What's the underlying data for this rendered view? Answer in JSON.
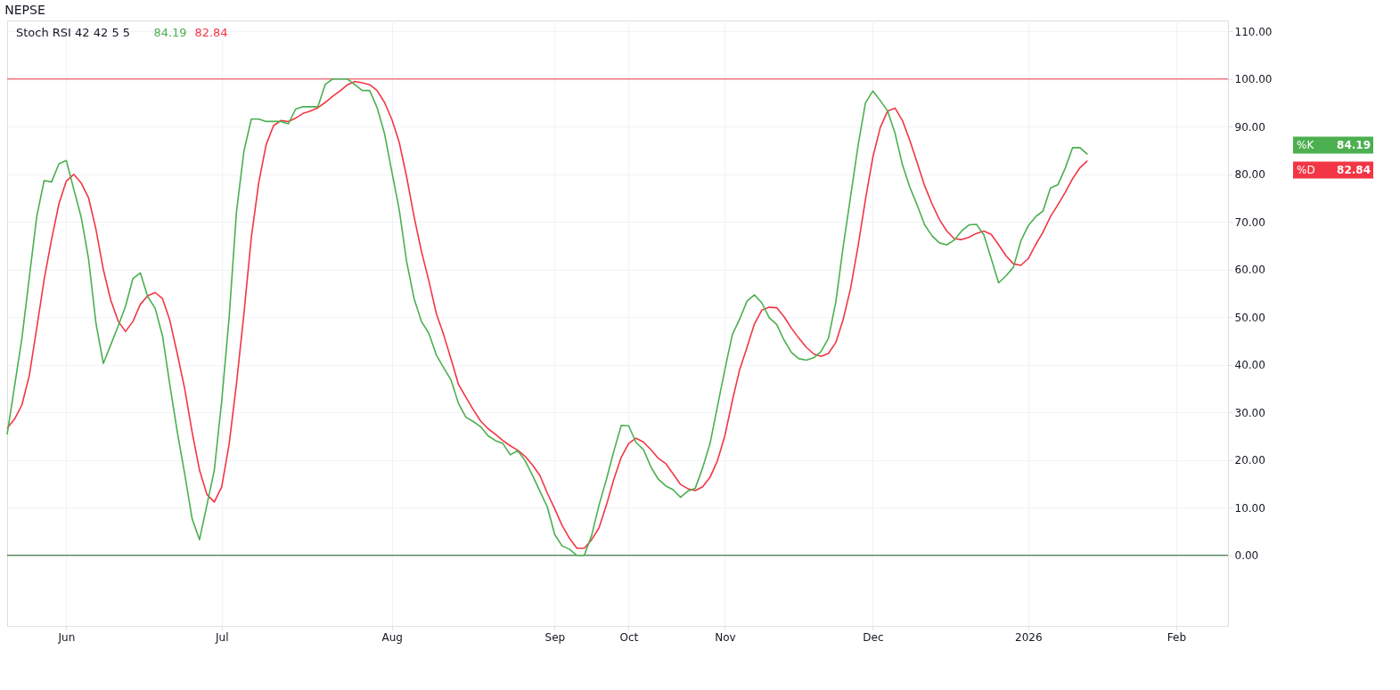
{
  "chart_data": {
    "type": "line",
    "title": "NEPSE",
    "subtitle": "Stoch RSI 42 42 5 5",
    "categories": [
      null,
      null,
      null,
      null,
      null,
      null,
      null,
      null,
      "Jun",
      null,
      null,
      null,
      null,
      null,
      null,
      null,
      null,
      null,
      null,
      null,
      null,
      null,
      null,
      null,
      null,
      null,
      null,
      null,
      null,
      "Jul",
      null,
      null,
      null,
      null,
      null,
      null,
      null,
      null,
      null,
      null,
      null,
      null,
      null,
      null,
      null,
      null,
      null,
      null,
      null,
      null,
      null,
      null,
      "Aug",
      null,
      null,
      null,
      null,
      null,
      null,
      null,
      null,
      null,
      null,
      null,
      null,
      null,
      null,
      null,
      null,
      null,
      null,
      null,
      null,
      null,
      "Sep",
      null,
      null,
      null,
      null,
      null,
      null,
      null,
      null,
      null,
      "Oct",
      null,
      null,
      null,
      null,
      null,
      null,
      null,
      null,
      null,
      null,
      null,
      null,
      "Nov",
      null,
      null,
      null,
      null,
      null,
      null,
      null,
      null,
      null,
      null,
      null,
      null,
      null,
      null,
      null,
      null,
      null,
      null,
      null,
      "Dec",
      null,
      null,
      null,
      null,
      null,
      null,
      null,
      null,
      null,
      null,
      null,
      null,
      null,
      null,
      null,
      null,
      null,
      null,
      null,
      null,
      "2026",
      null,
      null,
      null,
      null,
      null,
      null,
      null,
      null,
      null,
      null,
      null,
      null,
      null,
      null,
      null,
      null,
      null,
      null,
      null,
      "Feb",
      null,
      null,
      null,
      null,
      null,
      null,
      null
    ],
    "ylim": [
      -14.8,
      112.3
    ],
    "yticks": [
      {
        "value": 0,
        "label": "0.00"
      },
      {
        "value": 10,
        "label": "10.00"
      },
      {
        "value": 20,
        "label": "20.00"
      },
      {
        "value": 30,
        "label": "30.00"
      },
      {
        "value": 40,
        "label": "40.00"
      },
      {
        "value": 50,
        "label": "50.00"
      },
      {
        "value": 60,
        "label": "60.00"
      },
      {
        "value": 70,
        "label": "70.00"
      },
      {
        "value": 80,
        "label": "80.00"
      },
      {
        "value": 90,
        "label": "90.00"
      },
      {
        "value": 100,
        "label": "100.00"
      },
      {
        "value": 110,
        "label": "110.00"
      }
    ],
    "grid": true,
    "legend": false,
    "marker": "none",
    "line_style": "solid",
    "ref_lines": [
      {
        "axis": "y",
        "value": 100,
        "color": "#f23645"
      },
      {
        "axis": "y",
        "value": 0,
        "color": "#1b5e20"
      }
    ],
    "annotations": [
      "84.19",
      "82.84"
    ],
    "series": [
      {
        "name": "%K",
        "color": "#4caf50",
        "values": [
          25.4,
          35.5,
          45.6,
          58.4,
          71.1,
          78.7,
          78.4,
          82.2,
          82.9,
          76.9,
          71.1,
          62.3,
          48.8,
          40.3,
          44.2,
          48.1,
          52.3,
          58.1,
          59.3,
          54.3,
          51.9,
          46.1,
          35.7,
          25.9,
          17.1,
          7.7,
          3.3,
          10.6,
          17.9,
          32.4,
          49.9,
          72.2,
          84.8,
          91.6,
          91.6,
          91.1,
          91.1,
          91.1,
          90.6,
          93.7,
          94.2,
          94.2,
          94.2,
          98.9,
          100,
          100,
          100,
          98.8,
          97.6,
          97.6,
          94.0,
          88.6,
          80.5,
          72.5,
          61.6,
          53.9,
          49.1,
          46.6,
          42.1,
          39.4,
          36.8,
          31.9,
          29.0,
          28.1,
          27.0,
          25.1,
          24.1,
          23.5,
          21.1,
          22.0,
          19.9,
          16.8,
          13.5,
          10.2,
          4.4,
          2.0,
          1.3,
          0,
          0,
          4.2,
          10.6,
          16.0,
          21.9,
          27.3,
          27.2,
          23.7,
          22.2,
          18.6,
          16.0,
          14.6,
          13.8,
          12.2,
          13.5,
          14.1,
          18.4,
          23.5,
          31.3,
          39.0,
          46.3,
          49.6,
          53.4,
          54.7,
          53.0,
          49.9,
          48.5,
          45.2,
          42.6,
          41.3,
          41.0,
          41.5,
          42.8,
          45.6,
          53.2,
          64.9,
          75.4,
          86.0,
          95.0,
          97.5,
          95.5,
          93.3,
          88.6,
          82.0,
          77.3,
          73.5,
          69.4,
          67.1,
          65.6,
          65.2,
          66.2,
          68.1,
          69.4,
          69.5,
          67.3,
          62.3,
          57.2,
          58.7,
          60.5,
          66.0,
          69.2,
          71.1,
          72.3,
          77.1,
          77.8,
          81.3,
          85.6,
          85.6,
          84.19,
          null,
          null,
          null,
          null,
          null,
          null,
          null,
          null,
          null,
          null,
          null,
          null,
          null,
          null,
          null,
          null,
          null,
          null,
          null
        ]
      },
      {
        "name": "%D",
        "color": "#f23645",
        "values": [
          26.7,
          28.6,
          31.6,
          37.8,
          47.7,
          57.9,
          66.3,
          73.8,
          78.6,
          80.0,
          78.2,
          75.1,
          68.5,
          60.0,
          53.6,
          49.2,
          47.0,
          49.1,
          52.7,
          54.5,
          55.2,
          53.9,
          49.3,
          42.3,
          35.0,
          25.9,
          17.9,
          12.8,
          11.2,
          14.4,
          23.3,
          36.1,
          50.7,
          66.7,
          78.2,
          86.2,
          90.2,
          91.3,
          91.1,
          91.8,
          92.8,
          93.3,
          94.0,
          95.1,
          96.4,
          97.5,
          98.8,
          99.5,
          99.2,
          98.8,
          97.6,
          95.1,
          91.5,
          86.7,
          79.4,
          71.1,
          63.8,
          57.6,
          50.8,
          46.3,
          41.2,
          35.9,
          33.2,
          30.6,
          28.2,
          26.6,
          25.4,
          24.1,
          23.0,
          22.1,
          20.8,
          19.0,
          16.8,
          13.1,
          9.8,
          6.3,
          3.6,
          1.5,
          1.5,
          3.3,
          5.8,
          10.6,
          16.0,
          20.6,
          23.5,
          24.6,
          23.8,
          22.2,
          20.4,
          19.3,
          17.1,
          14.9,
          14.0,
          13.6,
          14.4,
          16.4,
          19.9,
          25.1,
          32.4,
          39.0,
          43.7,
          48.6,
          51.5,
          52.1,
          52.0,
          50.1,
          47.7,
          45.6,
          43.7,
          42.3,
          41.8,
          42.4,
          44.7,
          49.6,
          56.1,
          64.9,
          74.7,
          83.6,
          89.8,
          93.3,
          93.9,
          91.3,
          87.1,
          82.4,
          77.6,
          73.8,
          70.5,
          68.1,
          66.5,
          66.3,
          66.8,
          67.6,
          68.1,
          67.4,
          65.2,
          62.9,
          61.2,
          60.9,
          62.3,
          65.2,
          67.9,
          71.1,
          73.6,
          76.2,
          79.1,
          81.4,
          82.84,
          null,
          null,
          null,
          null,
          null,
          null,
          null,
          null,
          null,
          null,
          null,
          null,
          null,
          null,
          null,
          null,
          null,
          null,
          null
        ]
      }
    ]
  }
}
